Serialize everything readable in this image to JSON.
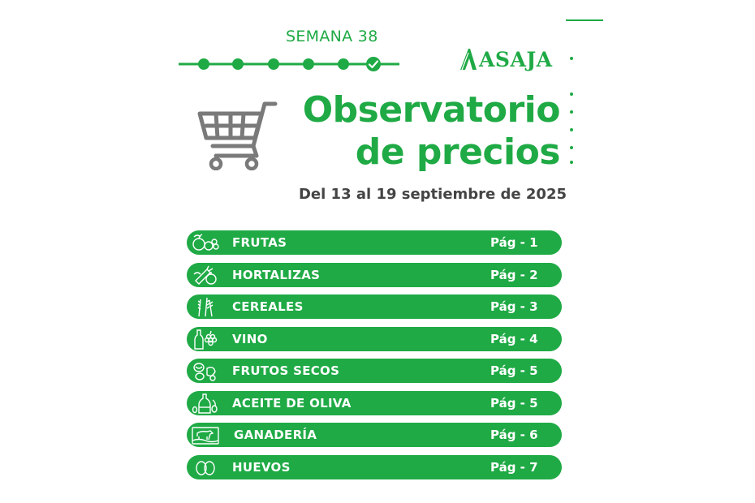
{
  "header": {
    "week_label": "SEMANA 38",
    "progress_completed": 6,
    "brand": "ASAJA",
    "title_line1": "Observatorio",
    "title_line2": "de precios",
    "date_range": "Del 13 al 19 septiembre de 2025"
  },
  "theme": {
    "accent": "#1faa45",
    "text_dark": "#444444",
    "icon_gray": "#7a7a7a"
  },
  "sections": [
    {
      "icon": "fruit-icon",
      "label": "FRUTAS",
      "page": "Pág - 1"
    },
    {
      "icon": "vegetables-icon",
      "label": "HORTALIZAS",
      "page": "Pág - 2"
    },
    {
      "icon": "wheat-icon",
      "label": "CEREALES",
      "page": "Pág - 3"
    },
    {
      "icon": "wine-icon",
      "label": "VINO",
      "page": "Pág - 4"
    },
    {
      "icon": "nuts-icon",
      "label": "FRUTOS SECOS",
      "page": "Pág - 5"
    },
    {
      "icon": "olive-oil-icon",
      "label": "ACEITE DE OLIVA",
      "page": "Pág - 5"
    },
    {
      "icon": "livestock-icon",
      "label": "GANADERÍA",
      "page": "Pág - 6"
    },
    {
      "icon": "eggs-icon",
      "label": "HUEVOS",
      "page": "Pág - 7"
    }
  ]
}
